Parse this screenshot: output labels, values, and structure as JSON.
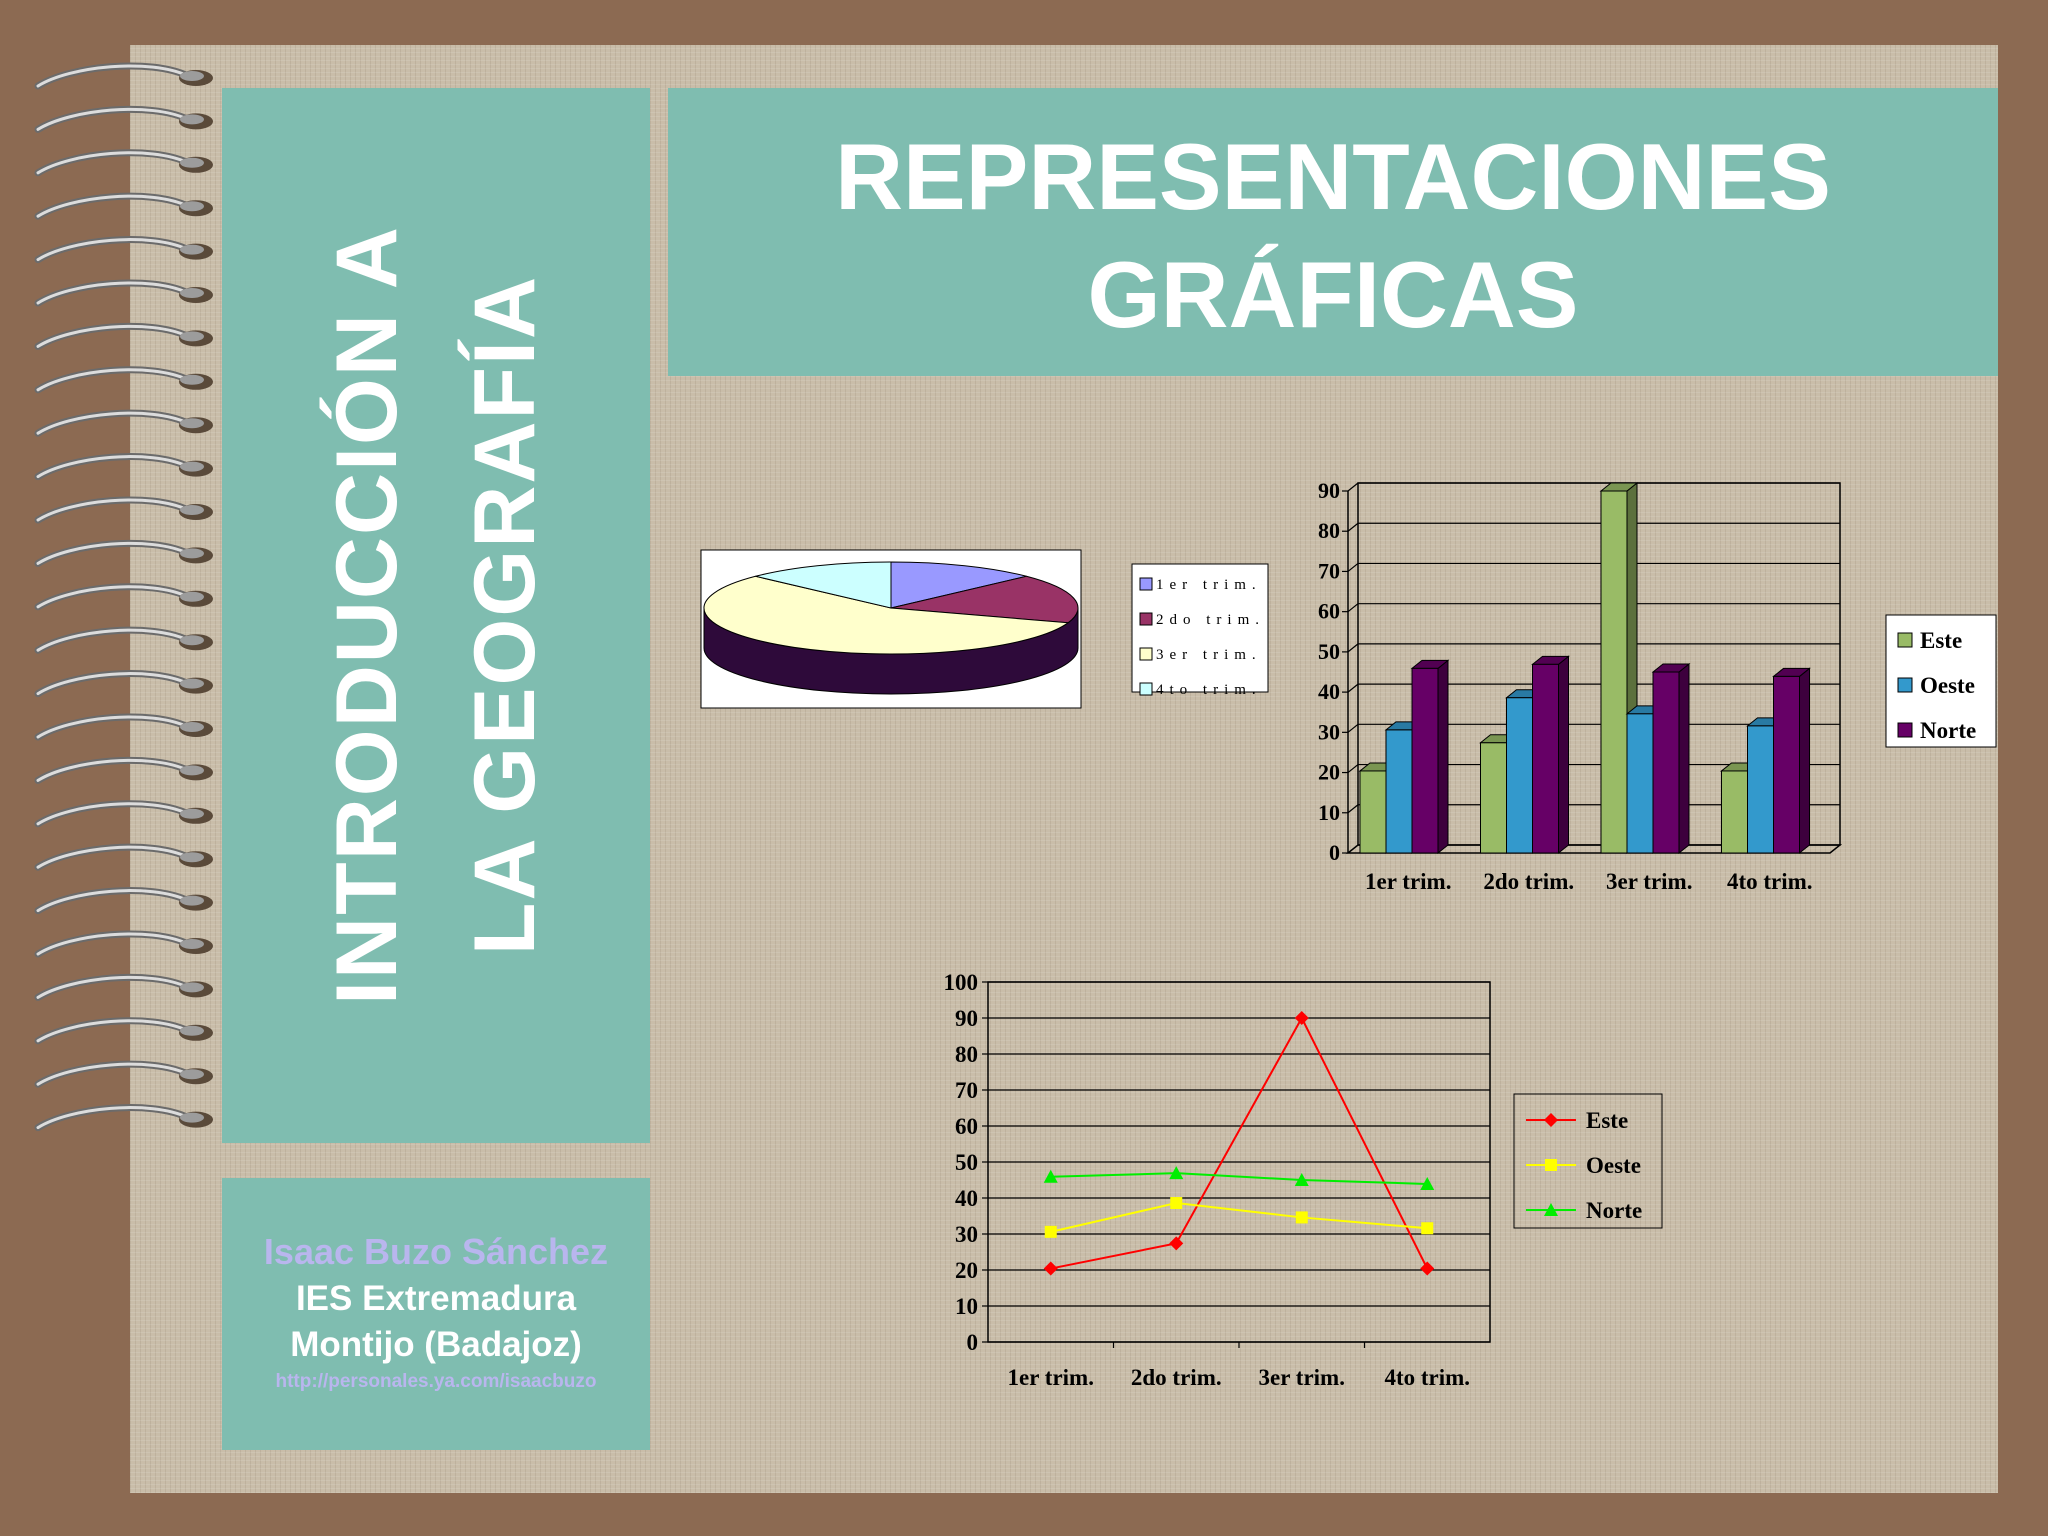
{
  "slide": {
    "side_title_line1": "INTRODUCCIÓN A",
    "side_title_line2": "LA GEOGRAFÍA",
    "title_line1": "REPRESENTACIONES",
    "title_line2": "GRÁFICAS",
    "author_name": "Isaac Buzo Sánchez",
    "school": "IES Extremadura",
    "city": "Montijo (Badajoz)",
    "url": "http://personales.ya.com/isaacbuzo"
  },
  "colors": {
    "page_border": "#8c6a52",
    "paper": "#c9bda9",
    "panel": "#7fbdb0",
    "title_text": "#ffffff",
    "author_name": "#b9b6ee"
  },
  "chart_data": [
    {
      "type": "pie",
      "categories": [
        "1er trim.",
        "2do trim.",
        "3er trim.",
        "4to trim."
      ],
      "values": [
        20.4,
        27.4,
        90,
        20.4
      ],
      "colors": [
        "#9999ff",
        "#993366",
        "#ffffcc",
        "#ccffff"
      ],
      "side_color": "#2e0a3a",
      "legend_position": "right"
    },
    {
      "type": "bar",
      "categories": [
        "1er trim.",
        "2do trim.",
        "3er trim.",
        "4to trim."
      ],
      "series": [
        {
          "name": "Este",
          "values": [
            20.4,
            27.4,
            90,
            20.4
          ],
          "color": "#99bb66"
        },
        {
          "name": "Oeste",
          "values": [
            30.6,
            38.6,
            34.6,
            31.6
          ],
          "color": "#3399cc"
        },
        {
          "name": "Norte",
          "values": [
            45.9,
            46.9,
            45,
            43.9
          ],
          "color": "#660066"
        }
      ],
      "yticks": [
        "0",
        "10",
        "20",
        "30",
        "40",
        "50",
        "60",
        "70",
        "80",
        "90"
      ],
      "ylim": [
        0,
        90
      ],
      "grid": true,
      "three_d": true,
      "legend_position": "right"
    },
    {
      "type": "line",
      "categories": [
        "1er trim.",
        "2do trim.",
        "3er trim.",
        "4to trim."
      ],
      "series": [
        {
          "name": "Este",
          "values": [
            20.4,
            27.4,
            90,
            20.4
          ],
          "color": "#ff0000",
          "marker": "diamond"
        },
        {
          "name": "Oeste",
          "values": [
            30.6,
            38.6,
            34.6,
            31.6
          ],
          "color": "#ffff00",
          "marker": "square"
        },
        {
          "name": "Norte",
          "values": [
            45.9,
            46.9,
            45,
            43.9
          ],
          "color": "#00ee00",
          "marker": "triangle"
        }
      ],
      "yticks": [
        "0",
        "10",
        "20",
        "30",
        "40",
        "50",
        "60",
        "70",
        "80",
        "90",
        "100"
      ],
      "ylim": [
        0,
        100
      ],
      "grid": true,
      "legend_position": "right"
    }
  ]
}
